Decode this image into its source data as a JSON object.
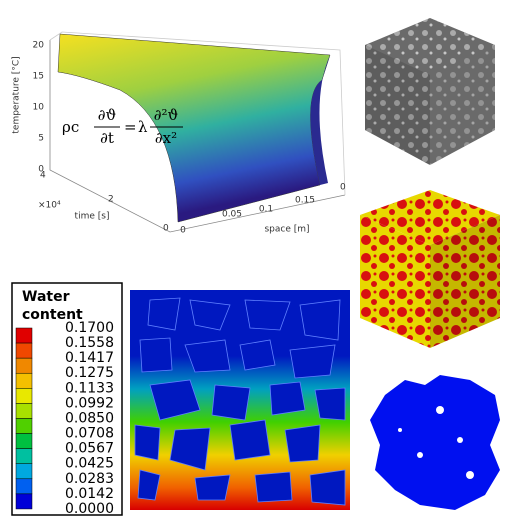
{
  "surface_plot": {
    "z_label": "temperature [°C]",
    "x_label": "time [s]",
    "y_label": "space [m]",
    "x_exponent": "×10⁴",
    "z_ticks": [
      "20",
      "15",
      "10",
      "5",
      "0"
    ],
    "x_ticks": [
      "4",
      "2",
      "0"
    ],
    "y_ticks": [
      "0",
      "0.05",
      "0.1",
      "0.15"
    ],
    "corner_tick": "0",
    "equation": {
      "lhs": "ρc",
      "lhs_num": "∂ϑ",
      "lhs_den": "∂t",
      "eq": "=",
      "rhs": "λ",
      "rhs_num": "∂²ϑ",
      "rhs_den": "∂x²"
    }
  },
  "legend": {
    "title_line1": "Water",
    "title_line2": "content",
    "labels": [
      "0.1700",
      "0.1558",
      "0.1417",
      "0.1275",
      "0.1133",
      "0.0992",
      "0.0850",
      "0.0708",
      "0.0567",
      "0.0425",
      "0.0283",
      "0.0142",
      "0.0000"
    ],
    "swatch_colors": [
      "#e00000",
      "#f04800",
      "#f08800",
      "#f4c000",
      "#e8e800",
      "#a8e000",
      "#50d000",
      "#00c040",
      "#00c0a0",
      "#00a8e0",
      "#0060f0",
      "#0000d8"
    ]
  }
}
